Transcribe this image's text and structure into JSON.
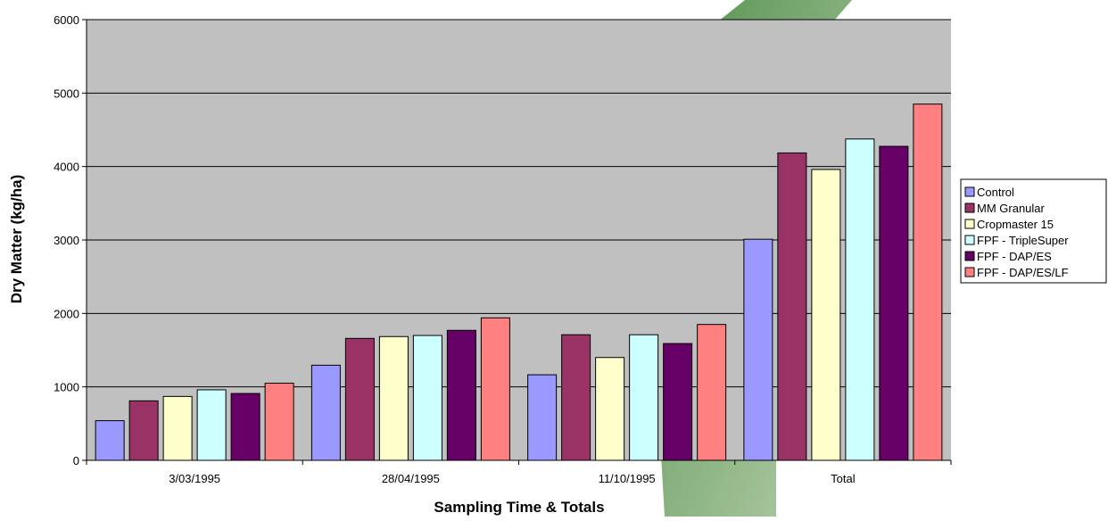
{
  "chart_data": {
    "type": "bar",
    "categories": [
      "3/03/1995",
      "28/04/1995",
      "11/10/1995",
      "Total"
    ],
    "series": [
      {
        "name": "Control",
        "color": "#9999ff",
        "values": [
          540,
          1295,
          1165,
          3010
        ]
      },
      {
        "name": "MM Granular",
        "color": "#993366",
        "values": [
          810,
          1660,
          1710,
          4185
        ]
      },
      {
        "name": "Cropmaster 15",
        "color": "#ffffcc",
        "values": [
          870,
          1685,
          1400,
          3960
        ]
      },
      {
        "name": "FPF - TripleSuper",
        "color": "#ccffff",
        "values": [
          960,
          1700,
          1710,
          4375
        ]
      },
      {
        "name": "FPF - DAP/ES",
        "color": "#660066",
        "values": [
          910,
          1770,
          1590,
          4275
        ]
      },
      {
        "name": "FPF - DAP/ES/LF",
        "color": "#ff8080",
        "values": [
          1050,
          1940,
          1850,
          4850
        ]
      }
    ],
    "xlabel": "Sampling Time & Totals",
    "ylabel": "Dry Matter (kg/ha)",
    "ylim": [
      0,
      6000
    ],
    "yticks": [
      "0",
      "1000",
      "2000",
      "3000",
      "4000",
      "5000",
      "6000"
    ],
    "grid": true,
    "plot_background": "#c0c0c0",
    "legend_position": "right"
  },
  "background_shape": {
    "name": "green-arrow-watermark",
    "color": "#4f8f3f"
  }
}
